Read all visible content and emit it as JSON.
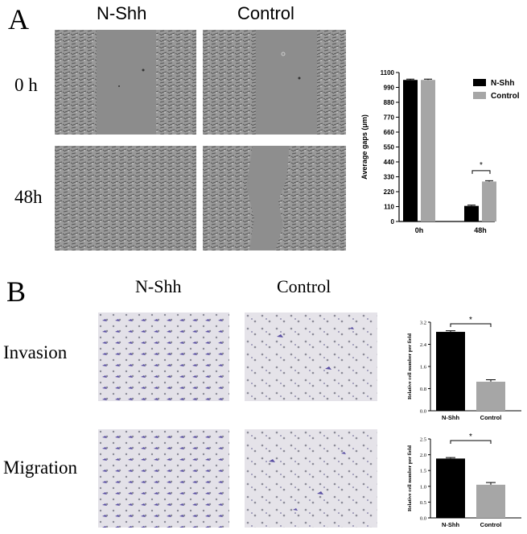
{
  "panel_a": {
    "letter": "A",
    "col_labels": [
      "N-Shh",
      "Control"
    ],
    "row_labels": [
      "0 h",
      "48h"
    ]
  },
  "panel_b": {
    "letter": "B",
    "col_labels": [
      "N-Shh",
      "Control"
    ],
    "row_labels": [
      "Invasion",
      "Migration"
    ]
  },
  "colors": {
    "nshh": "#000000",
    "control": "#a6a6a6",
    "stain": "#5a4fa3"
  },
  "chart_data": [
    {
      "type": "bar",
      "ylabel": "Average gaps (μm)",
      "categories": [
        "0h",
        "48h"
      ],
      "series": [
        {
          "name": "N-Shh",
          "values": [
            1045,
            115
          ],
          "errors": [
            6,
            6
          ]
        },
        {
          "name": "Control",
          "values": [
            1045,
            295
          ],
          "errors": [
            6,
            6
          ]
        }
      ],
      "ylim": [
        0,
        1100
      ],
      "yticks": [
        "0",
        "110",
        "220",
        "330",
        "440",
        "550",
        "660",
        "770",
        "880",
        "990",
        "1100"
      ],
      "legend": [
        "N-Shh",
        "Control"
      ],
      "legend_position": "top-right",
      "annotation": "*"
    },
    {
      "type": "bar",
      "ylabel": "Relative cell number per field",
      "categories": [
        "N-Shh",
        "Control"
      ],
      "values": [
        2.85,
        1.05
      ],
      "errors": [
        0.04,
        0.07
      ],
      "ylim": [
        0,
        3.2
      ],
      "yticks": [
        "0.0",
        "0.8",
        "1.6",
        "2.4",
        "3.2"
      ],
      "annotation": "*"
    },
    {
      "type": "bar",
      "ylabel": "Relative cell number per field",
      "categories": [
        "N-Shh",
        "Control"
      ],
      "values": [
        1.88,
        1.05
      ],
      "errors": [
        0.03,
        0.07
      ],
      "ylim": [
        0,
        2.5
      ],
      "yticks": [
        "0.0",
        "0.5",
        "1.0",
        "1.5",
        "2.0",
        "2.5"
      ],
      "annotation": "*"
    }
  ]
}
